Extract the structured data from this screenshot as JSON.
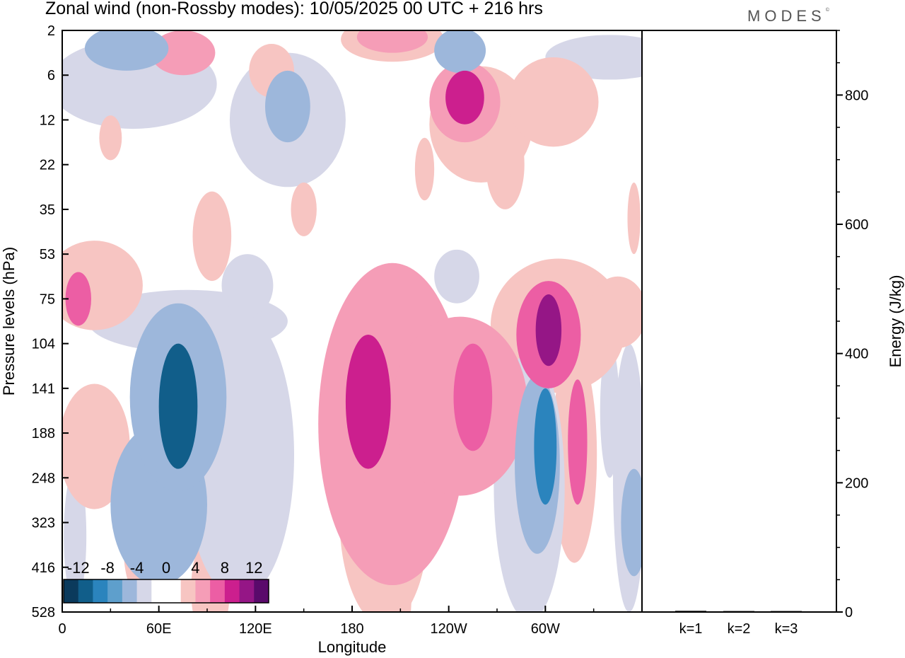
{
  "header": {
    "title": "Zonal wind (non-Rossby modes):  10/05/2025  00 UTC  + 216 hrs",
    "brand": "MODES",
    "brand_mark": "©"
  },
  "chart_data": [
    {
      "type": "heatmap",
      "title": "Zonal wind (non-Rossby modes):  10/05/2025  00 UTC  + 216 hrs",
      "xlabel": "Longitude",
      "ylabel": "Pressure levels (hPa)",
      "x_ticks": [
        "0",
        "60E",
        "120E",
        "180",
        "120W",
        "60W"
      ],
      "x_tick_values": [
        0,
        60,
        120,
        180,
        240,
        300
      ],
      "xlim": [
        0,
        360
      ],
      "y_ticks": [
        "2",
        "6",
        "12",
        "22",
        "35",
        "53",
        "75",
        "104",
        "141",
        "188",
        "248",
        "323",
        "416",
        "528"
      ],
      "y_axis_direction": "pressure increasing downward",
      "colorbar": {
        "ticks": [
          "-12",
          "-8",
          "-4",
          "0",
          "4",
          "8",
          "12"
        ],
        "colors": [
          "#0b3a5c",
          "#115e8a",
          "#2b84bd",
          "#5e9fcc",
          "#9db7db",
          "#d6d7e8",
          "#ffffff",
          "#ffffff",
          "#f7c5c2",
          "#f59db7",
          "#ec5ea4",
          "#cc1f8e",
          "#951686",
          "#5a0a6b"
        ]
      },
      "anomalies": [
        {
          "lon": 72,
          "lev": 8.4,
          "value": -11,
          "rx": 12,
          "ry": 1.4
        },
        {
          "lon": 72,
          "lev": 8.2,
          "value": -6,
          "rx": 30,
          "ry": 2.1
        },
        {
          "lon": 60,
          "lev": 10.6,
          "value": -5,
          "rx": 30,
          "ry": 1.8
        },
        {
          "lon": 110,
          "lev": 9.5,
          "value": -4,
          "rx": 34,
          "ry": 3.2
        },
        {
          "lon": 300,
          "lev": 9.3,
          "value": -9,
          "rx": 7,
          "ry": 1.3
        },
        {
          "lon": 295,
          "lev": 9.7,
          "value": -6,
          "rx": 14,
          "ry": 2.0
        },
        {
          "lon": 290,
          "lev": 10.2,
          "value": -4,
          "rx": 22,
          "ry": 3.0
        },
        {
          "lon": 78,
          "lev": 6.5,
          "value": -3,
          "rx": 62,
          "ry": 0.7
        },
        {
          "lon": 115,
          "lev": 5.7,
          "value": -4,
          "rx": 16,
          "ry": 0.7
        },
        {
          "lon": 140,
          "lev": 1.7,
          "value": -6,
          "rx": 14,
          "ry": 0.8
        },
        {
          "lon": 140,
          "lev": 2.0,
          "value": -3,
          "rx": 36,
          "ry": 1.5
        },
        {
          "lon": 40,
          "lev": 0.4,
          "value": -5,
          "rx": 26,
          "ry": 0.5
        },
        {
          "lon": 44,
          "lev": 1.2,
          "value": -3,
          "rx": 52,
          "ry": 1.0
        },
        {
          "lon": 247,
          "lev": 0.45,
          "value": -6,
          "rx": 16,
          "ry": 0.5
        },
        {
          "lon": 340,
          "lev": 0.6,
          "value": -3,
          "rx": 40,
          "ry": 0.5
        },
        {
          "lon": 355,
          "lev": 11.0,
          "value": -5,
          "rx": 8,
          "ry": 1.2
        },
        {
          "lon": 352,
          "lev": 10.0,
          "value": -3,
          "rx": 10,
          "ry": 3.0
        },
        {
          "lon": 340,
          "lev": 8.5,
          "value": -3,
          "rx": 6,
          "ry": 1.5
        },
        {
          "lon": 8,
          "lev": 11.3,
          "value": -3,
          "rx": 7,
          "ry": 1.5
        },
        {
          "lon": 190,
          "lev": 8.3,
          "value": 8,
          "rx": 14,
          "ry": 1.5
        },
        {
          "lon": 205,
          "lev": 8.8,
          "value": 4,
          "rx": 46,
          "ry": 3.6
        },
        {
          "lon": 200,
          "lev": 10.8,
          "value": 3,
          "rx": 28,
          "ry": 2.5
        },
        {
          "lon": 255,
          "lev": 8.2,
          "value": 7,
          "rx": 12,
          "ry": 1.2
        },
        {
          "lon": 247,
          "lev": 8.4,
          "value": 4,
          "rx": 42,
          "ry": 2.0
        },
        {
          "lon": 302,
          "lev": 6.7,
          "value": 10,
          "rx": 8,
          "ry": 0.8
        },
        {
          "lon": 302,
          "lev": 6.8,
          "value": 6,
          "rx": 20,
          "ry": 1.2
        },
        {
          "lon": 308,
          "lev": 6.6,
          "value": 3,
          "rx": 42,
          "ry": 1.5
        },
        {
          "lon": 320,
          "lev": 9.2,
          "value": 6,
          "rx": 6,
          "ry": 1.4
        },
        {
          "lon": 318,
          "lev": 9.5,
          "value": 3,
          "rx": 14,
          "ry": 2.4
        },
        {
          "lon": 345,
          "lev": 6.3,
          "value": 3,
          "rx": 18,
          "ry": 0.8
        },
        {
          "lon": 250,
          "lev": 1.5,
          "value": 8,
          "rx": 12,
          "ry": 0.6
        },
        {
          "lon": 250,
          "lev": 1.6,
          "value": 5,
          "rx": 22,
          "ry": 0.9
        },
        {
          "lon": 260,
          "lev": 2.1,
          "value": 3,
          "rx": 32,
          "ry": 1.3
        },
        {
          "lon": 275,
          "lev": 3.0,
          "value": 3,
          "rx": 12,
          "ry": 1.0
        },
        {
          "lon": 305,
          "lev": 1.6,
          "value": 3,
          "rx": 28,
          "ry": 1.0
        },
        {
          "lon": 205,
          "lev": 0.15,
          "value": 5,
          "rx": 22,
          "ry": 0.35
        },
        {
          "lon": 205,
          "lev": 0.2,
          "value": 3,
          "rx": 32,
          "ry": 0.5
        },
        {
          "lon": 10,
          "lev": 6.0,
          "value": 6,
          "rx": 8,
          "ry": 0.6
        },
        {
          "lon": 20,
          "lev": 5.7,
          "value": 3,
          "rx": 30,
          "ry": 1.0
        },
        {
          "lon": 20,
          "lev": 9.3,
          "value": 3,
          "rx": 22,
          "ry": 1.4
        },
        {
          "lon": 93,
          "lev": 4.6,
          "value": 3,
          "rx": 12,
          "ry": 1.0
        },
        {
          "lon": 210,
          "lev": 12.4,
          "value": 3,
          "rx": 7,
          "ry": 1.6
        },
        {
          "lon": 92,
          "lev": 12.5,
          "value": 3,
          "rx": 12,
          "ry": 1.2
        },
        {
          "lon": 45,
          "lev": 11.5,
          "value": 3,
          "rx": 7,
          "ry": 1.0
        },
        {
          "lon": 75,
          "lev": 0.5,
          "value": 4,
          "rx": 20,
          "ry": 0.5
        },
        {
          "lon": 130,
          "lev": 0.9,
          "value": 3,
          "rx": 14,
          "ry": 0.6
        },
        {
          "lon": 225,
          "lev": 3.1,
          "value": 3,
          "rx": 6,
          "ry": 0.7
        },
        {
          "lon": 150,
          "lev": 4.0,
          "value": 3,
          "rx": 8,
          "ry": 0.6
        },
        {
          "lon": 355,
          "lev": 4.2,
          "value": 3,
          "rx": 4,
          "ry": 0.8
        },
        {
          "lon": 245,
          "lev": 5.5,
          "value": -3,
          "rx": 14,
          "ry": 0.6
        },
        {
          "lon": 215,
          "lev": 6.7,
          "value": 3,
          "rx": 8,
          "ry": 0.5
        },
        {
          "lon": 30,
          "lev": 2.4,
          "value": 3,
          "rx": 7,
          "ry": 0.5
        }
      ]
    },
    {
      "type": "bar",
      "ylabel": "Energy (J/kg)",
      "categories": [
        "k=1",
        "k=2",
        "k=3"
      ],
      "values": [
        2,
        1,
        1
      ],
      "ylim": [
        0,
        900
      ],
      "y_ticks": [
        "0",
        "200",
        "400",
        "600",
        "800"
      ],
      "y_tick_values": [
        0,
        200,
        400,
        600,
        800
      ],
      "y_minor_step": 50
    }
  ]
}
